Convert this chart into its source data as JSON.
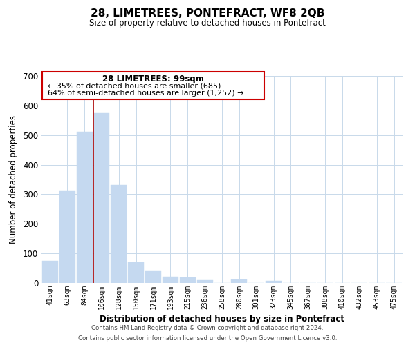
{
  "title": "28, LIMETREES, PONTEFRACT, WF8 2QB",
  "subtitle": "Size of property relative to detached houses in Pontefract",
  "xlabel": "Distribution of detached houses by size in Pontefract",
  "ylabel": "Number of detached properties",
  "categories": [
    "41sqm",
    "63sqm",
    "84sqm",
    "106sqm",
    "128sqm",
    "150sqm",
    "171sqm",
    "193sqm",
    "215sqm",
    "236sqm",
    "258sqm",
    "280sqm",
    "301sqm",
    "323sqm",
    "345sqm",
    "367sqm",
    "388sqm",
    "410sqm",
    "432sqm",
    "453sqm",
    "475sqm"
  ],
  "values": [
    75,
    310,
    510,
    575,
    332,
    70,
    40,
    20,
    18,
    10,
    0,
    12,
    0,
    7,
    0,
    0,
    0,
    0,
    0,
    0,
    0
  ],
  "bar_color": "#c5d9f0",
  "vline_index": 2,
  "vline_color": "#aa0000",
  "ylim": [
    0,
    700
  ],
  "yticks": [
    0,
    100,
    200,
    300,
    400,
    500,
    600,
    700
  ],
  "annotation_title": "28 LIMETREES: 99sqm",
  "annotation_line1": "← 35% of detached houses are smaller (685)",
  "annotation_line2": "64% of semi-detached houses are larger (1,252) →",
  "footer1": "Contains HM Land Registry data © Crown copyright and database right 2024.",
  "footer2": "Contains public sector information licensed under the Open Government Licence v3.0.",
  "background_color": "#ffffff",
  "grid_color": "#c8d9ea"
}
